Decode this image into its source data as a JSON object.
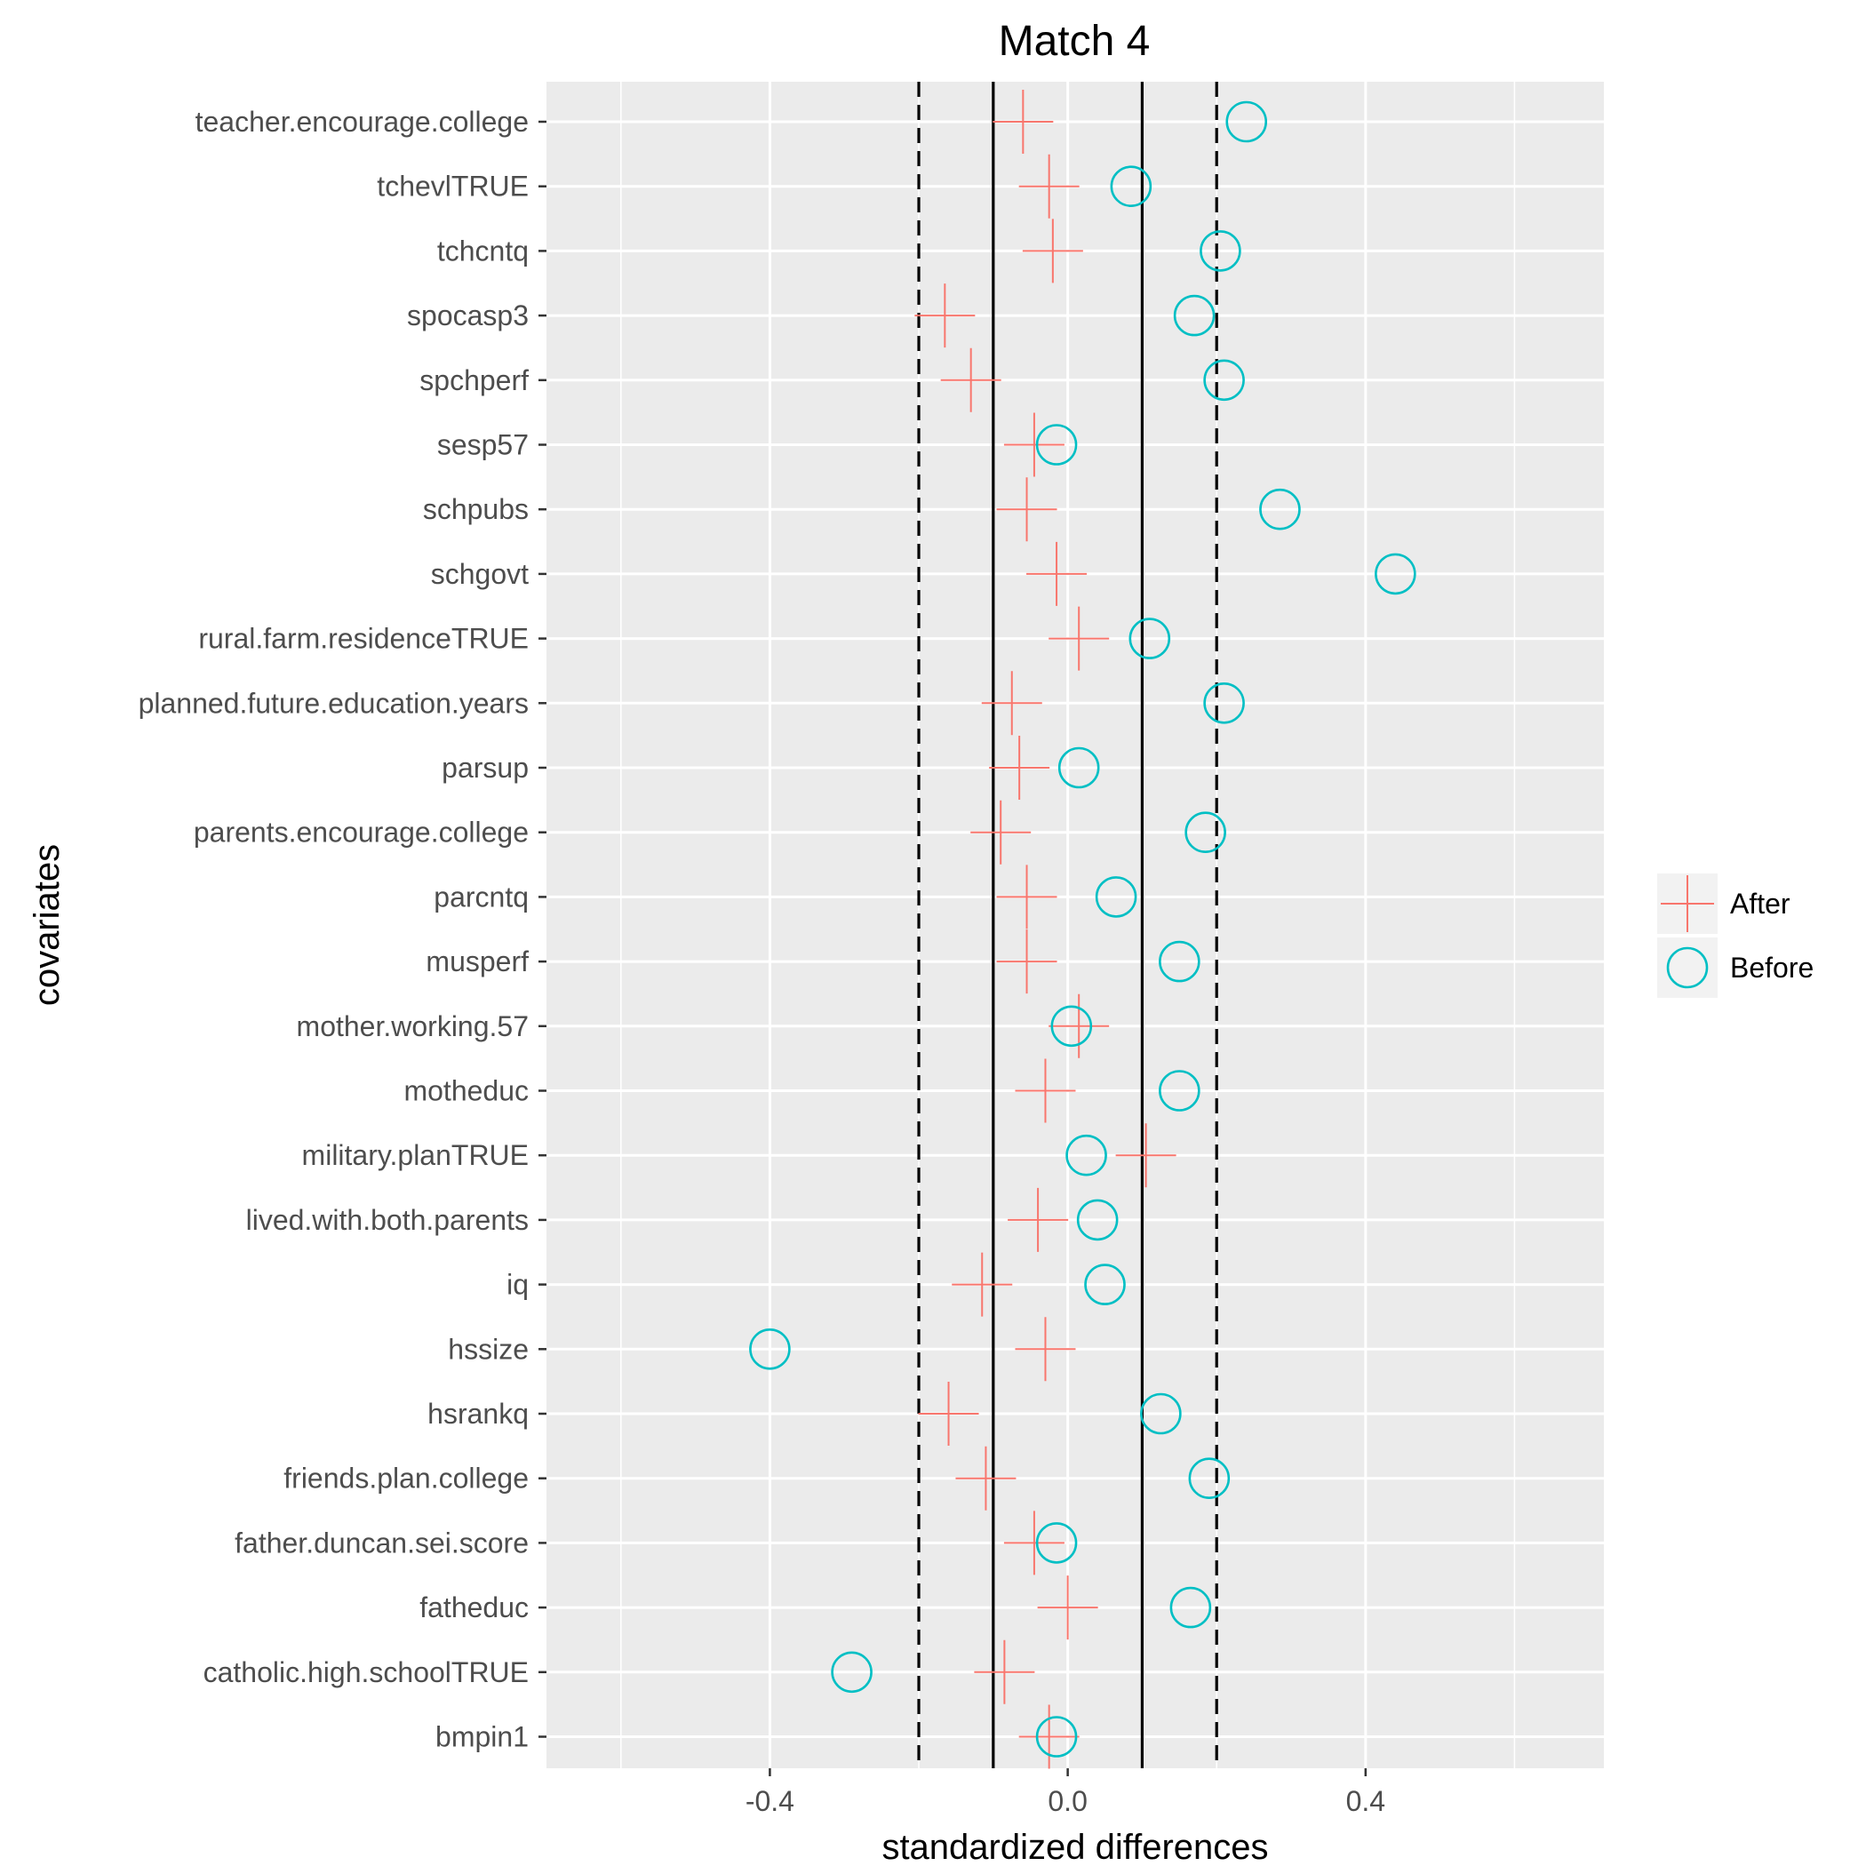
{
  "chart_data": {
    "type": "scatter",
    "title": "Match 4",
    "xlabel": "standardized differences",
    "ylabel": "covariates",
    "xlim": [
      -0.7,
      0.72
    ],
    "x_ticks": [
      -0.4,
      0.0,
      0.4
    ],
    "x_tick_labels": [
      "-0.4",
      "0.0",
      "0.4"
    ],
    "grid": true,
    "reference_lines": {
      "solid": [
        -0.1,
        0.1
      ],
      "dashed": [
        -0.2,
        0.2
      ]
    },
    "legend": {
      "position": "right",
      "entries": [
        {
          "label": "After",
          "marker": "plus",
          "color": "#F8766D"
        },
        {
          "label": "Before",
          "marker": "circle-open",
          "color": "#00BFC4"
        }
      ]
    },
    "categories": [
      "teacher.encourage.college",
      "tchevlTRUE",
      "tchcntq",
      "spocasp3",
      "spchperf",
      "sesp57",
      "schpubs",
      "schgovt",
      "rural.farm.residenceTRUE",
      "planned.future.education.years",
      "parsup",
      "parents.encourage.college",
      "parcntq",
      "musperf",
      "mother.working.57",
      "motheduc",
      "military.planTRUE",
      "lived.with.both.parents",
      "iq",
      "hssize",
      "hsrankq",
      "friends.plan.college",
      "father.duncan.sei.score",
      "fatheduc",
      "catholic.high.schoolTRUE",
      "bmpin1"
    ],
    "series": [
      {
        "name": "After",
        "values": [
          -0.06,
          -0.025,
          -0.02,
          -0.165,
          -0.13,
          -0.045,
          -0.055,
          -0.015,
          0.015,
          -0.075,
          -0.065,
          -0.09,
          -0.055,
          -0.055,
          0.015,
          -0.03,
          0.105,
          -0.04,
          -0.115,
          -0.03,
          -0.16,
          -0.11,
          -0.045,
          0.0,
          -0.085,
          -0.025
        ]
      },
      {
        "name": "Before",
        "values": [
          0.24,
          0.085,
          0.205,
          0.17,
          0.21,
          -0.015,
          0.285,
          0.44,
          0.11,
          0.21,
          0.015,
          0.185,
          0.065,
          0.15,
          0.005,
          0.15,
          0.025,
          0.04,
          0.05,
          -0.4,
          0.125,
          0.19,
          -0.015,
          0.165,
          -0.29,
          -0.015
        ]
      }
    ]
  }
}
